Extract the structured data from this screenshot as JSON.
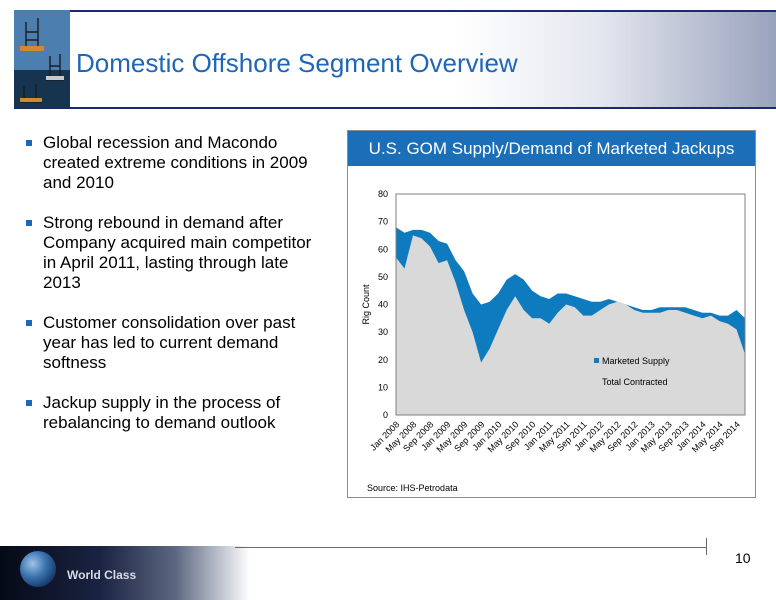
{
  "slide": {
    "title": "Domestic Offshore Segment Overview",
    "page_number": "10",
    "footer_brand": "World Class",
    "colors": {
      "title": "#1f66b7",
      "chart_header": "#1a6fb8",
      "marketed_supply": "#0e7bbf",
      "total_contracted": "#d9d9d9"
    }
  },
  "bullets": [
    "Global recession and Macondo created extreme conditions in 2009 and 2010",
    "Strong rebound in demand after Company acquired main competitor in April 2011, lasting through late 2013",
    "Customer consolidation over past year has led to current demand softness",
    "Jackup supply in the process of rebalancing to demand outlook"
  ],
  "chart": {
    "header": "U.S. GOM Supply/Demand of Marketed Jackups",
    "source_label": "Source:",
    "source_value": "IHS-Petrodata"
  },
  "chart_data": {
    "type": "area",
    "title": "U.S. GOM Supply/Demand of Marketed Jackups",
    "xlabel": "",
    "ylabel": "Rig Count",
    "ylim": [
      0,
      80
    ],
    "yticks": [
      0,
      10,
      20,
      30,
      40,
      50,
      60,
      70,
      80
    ],
    "xticks": [
      "Jan 2008",
      "May 2008",
      "Sep 2008",
      "Jan 2009",
      "May 2009",
      "Sep 2009",
      "Jan 2010",
      "May 2010",
      "Sep 2010",
      "Jan 2011",
      "May 2011",
      "Sep 2011",
      "Jan 2012",
      "May 2012",
      "Sep 2012",
      "Jan 2013",
      "May 2013",
      "Sep 2013",
      "Jan 2014",
      "May 2014",
      "Sep 2014"
    ],
    "legend_position": "lower-right",
    "grid": false,
    "x": [
      "Jan 2008",
      "Mar 2008",
      "May 2008",
      "Jul 2008",
      "Sep 2008",
      "Nov 2008",
      "Jan 2009",
      "Mar 2009",
      "May 2009",
      "Jul 2009",
      "Sep 2009",
      "Nov 2009",
      "Jan 2010",
      "Mar 2010",
      "May 2010",
      "Jul 2010",
      "Sep 2010",
      "Nov 2010",
      "Jan 2011",
      "Mar 2011",
      "May 2011",
      "Jul 2011",
      "Sep 2011",
      "Nov 2011",
      "Jan 2012",
      "Mar 2012",
      "May 2012",
      "Jul 2012",
      "Sep 2012",
      "Nov 2012",
      "Jan 2013",
      "Mar 2013",
      "May 2013",
      "Jul 2013",
      "Sep 2013",
      "Nov 2013",
      "Jan 2014",
      "Mar 2014",
      "May 2014",
      "Jul 2014",
      "Sep 2014",
      "Nov 2014"
    ],
    "series": [
      {
        "name": "Marketed Supply",
        "values": [
          68,
          66,
          67,
          67,
          66,
          63,
          62,
          56,
          52,
          44,
          40,
          41,
          44,
          49,
          51,
          49,
          45,
          43,
          42,
          44,
          44,
          43,
          42,
          41,
          41,
          42,
          41,
          40,
          39,
          38,
          38,
          39,
          39,
          39,
          39,
          38,
          37,
          37,
          36,
          36,
          38,
          35
        ]
      },
      {
        "name": "Total Contracted",
        "values": [
          57,
          53,
          65,
          64,
          61,
          55,
          56,
          48,
          38,
          30,
          19,
          24,
          31,
          38,
          43,
          38,
          35,
          35,
          33,
          37,
          40,
          39,
          36,
          36,
          38,
          40,
          41,
          40,
          38,
          37,
          37,
          37,
          38,
          38,
          37,
          36,
          35,
          36,
          34,
          33,
          31,
          22
        ]
      }
    ]
  }
}
